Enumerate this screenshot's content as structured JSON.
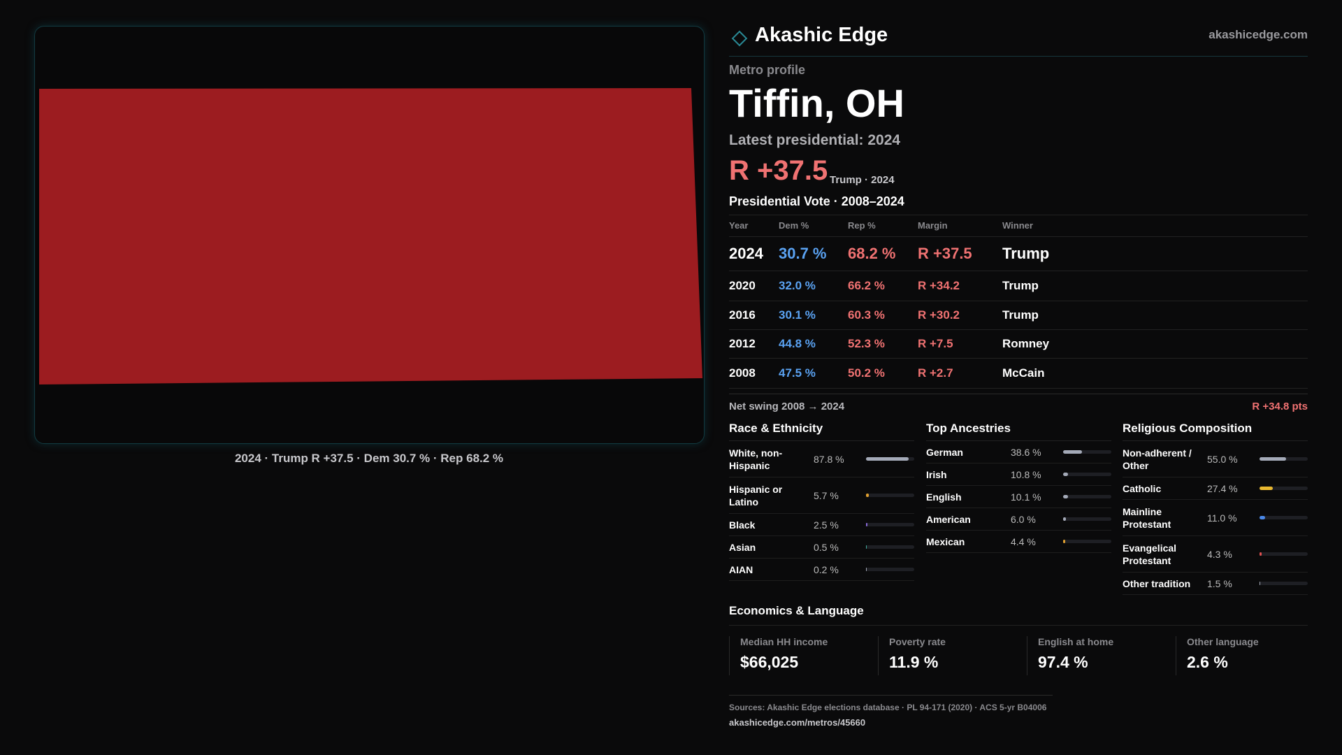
{
  "header": {
    "brand": "Akashic Edge",
    "site": "akashicedge.com"
  },
  "map": {
    "caption": "2024 · Trump R +37.5 · Dem 30.7 % · Rep 68.2 %"
  },
  "profile": {
    "kicker": "Metro profile",
    "title": "Tiffin, OH",
    "latest": "Latest presidential: 2024",
    "margin": "R +37.5",
    "margin_note": "Trump · 2024"
  },
  "table": {
    "title": "Presidential Vote · 2008–2024",
    "columns": [
      "Year",
      "Dem %",
      "Rep %",
      "Margin",
      "Winner"
    ],
    "rows": [
      [
        "2024",
        "30.7 %",
        "68.2 %",
        "R +37.5",
        "Trump"
      ],
      [
        "2020",
        "32.0 %",
        "66.2 %",
        "R +34.2",
        "Trump"
      ],
      [
        "2016",
        "30.1 %",
        "60.3 %",
        "R +30.2",
        "Trump"
      ],
      [
        "2012",
        "44.8 %",
        "52.3 %",
        "R +7.5",
        "Romney"
      ],
      [
        "2008",
        "47.5 %",
        "50.2 %",
        "R +2.7",
        "McCain"
      ]
    ]
  },
  "swing": {
    "label": "Net swing 2008 → 2024",
    "value": "R +34.8 pts"
  },
  "panels": [
    {
      "title": "Race & Ethnicity",
      "items": [
        {
          "name": "White, non-Hispanic",
          "value": 87.8,
          "label": "87.8 %",
          "color": "#a4aab8"
        },
        {
          "name": "Hispanic or Latino",
          "value": 5.7,
          "label": "5.7 %",
          "color": "#e0a030"
        },
        {
          "name": "Black",
          "value": 2.5,
          "label": "2.5 %",
          "color": "#8a6ad8"
        },
        {
          "name": "Asian",
          "value": 0.5,
          "label": "0.5 %",
          "color": "#40b0a0"
        },
        {
          "name": "AIAN",
          "value": 0.2,
          "label": "0.2 %",
          "color": "#a4aab8"
        }
      ]
    },
    {
      "title": "Top Ancestries",
      "items": [
        {
          "name": "German",
          "value": 38.6,
          "label": "38.6 %",
          "color": "#a4aab8"
        },
        {
          "name": "Irish",
          "value": 10.8,
          "label": "10.8 %",
          "color": "#a4aab8"
        },
        {
          "name": "English",
          "value": 10.1,
          "label": "10.1 %",
          "color": "#a4aab8"
        },
        {
          "name": "American",
          "value": 6.0,
          "label": "6.0 %",
          "color": "#a4aab8"
        },
        {
          "name": "Mexican",
          "value": 4.4,
          "label": "4.4 %",
          "color": "#e0a030"
        }
      ]
    },
    {
      "title": "Religious Composition",
      "items": [
        {
          "name": "Non-adherent / Other",
          "value": 55.0,
          "label": "55.0 %",
          "color": "#a4aab8"
        },
        {
          "name": "Catholic",
          "value": 27.4,
          "label": "27.4 %",
          "color": "#e8b830"
        },
        {
          "name": "Mainline Protestant",
          "value": 11.0,
          "label": "11.0 %",
          "color": "#4a88e8"
        },
        {
          "name": "Evangelical Protestant",
          "value": 4.3,
          "label": "4.3 %",
          "color": "#e05050"
        },
        {
          "name": "Other tradition",
          "value": 1.5,
          "label": "1.5 %",
          "color": "#a4aab8"
        }
      ]
    }
  ],
  "economics": {
    "title": "Economics & Language",
    "cells": [
      {
        "label": "Median HH income",
        "value": "$66,025"
      },
      {
        "label": "Poverty rate",
        "value": "11.9 %"
      },
      {
        "label": "English at home",
        "value": "97.4 %"
      },
      {
        "label": "Other language",
        "value": "2.6 %"
      }
    ]
  },
  "sources": {
    "text": "Sources: Akashic Edge elections database · PL 94-171 (2020) · ACS 5-yr B04006",
    "url": "akashicedge.com/metros/45660"
  }
}
